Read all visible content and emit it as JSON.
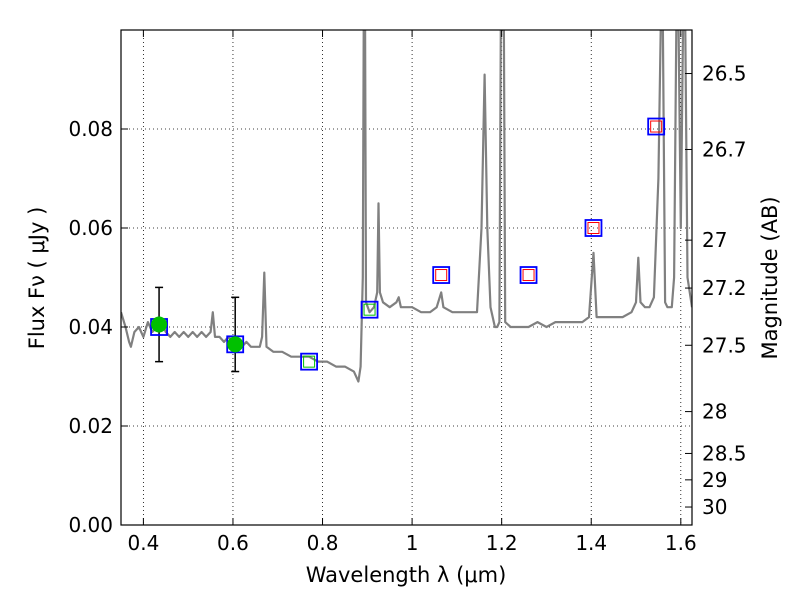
{
  "chart_data": {
    "type": "scatter",
    "title": "",
    "xlabel": "Wavelength  λ (μm)",
    "ylabel": "Flux  Fν  ( μJy )",
    "y2label": "Magnitude (AB)",
    "xlim": [
      0.35,
      1.625
    ],
    "ylim": [
      0.0,
      0.1
    ],
    "grid": true,
    "x_ticks": [
      "0.4",
      "0.6",
      "0.8",
      "1",
      "1.2",
      "1.4",
      "1.6"
    ],
    "y_ticks": [
      "0.00",
      "0.02",
      "0.04",
      "0.06",
      "0.08"
    ],
    "y2_ticks": [
      "26.5",
      "26.7",
      "27",
      "27.2",
      "27.5",
      "28",
      "28.5",
      "29",
      "30"
    ],
    "series": [
      {
        "kind": "spectrum_line",
        "color": "#808080",
        "points": [
          [
            0.35,
            0.043
          ],
          [
            0.36,
            0.04
          ],
          [
            0.368,
            0.037
          ],
          [
            0.372,
            0.036
          ],
          [
            0.38,
            0.039
          ],
          [
            0.39,
            0.04
          ],
          [
            0.4,
            0.038
          ],
          [
            0.41,
            0.041
          ],
          [
            0.42,
            0.039
          ],
          [
            0.43,
            0.04
          ],
          [
            0.44,
            0.041
          ],
          [
            0.45,
            0.039
          ],
          [
            0.46,
            0.038
          ],
          [
            0.47,
            0.039
          ],
          [
            0.48,
            0.038
          ],
          [
            0.49,
            0.039
          ],
          [
            0.5,
            0.038
          ],
          [
            0.51,
            0.039
          ],
          [
            0.52,
            0.038
          ],
          [
            0.53,
            0.039
          ],
          [
            0.54,
            0.038
          ],
          [
            0.55,
            0.039
          ],
          [
            0.555,
            0.043
          ],
          [
            0.56,
            0.038
          ],
          [
            0.57,
            0.038
          ],
          [
            0.58,
            0.037
          ],
          [
            0.59,
            0.038
          ],
          [
            0.6,
            0.037
          ],
          [
            0.61,
            0.037
          ],
          [
            0.62,
            0.036
          ],
          [
            0.63,
            0.037
          ],
          [
            0.64,
            0.036
          ],
          [
            0.65,
            0.036
          ],
          [
            0.66,
            0.036
          ],
          [
            0.665,
            0.038
          ],
          [
            0.67,
            0.051
          ],
          [
            0.675,
            0.036
          ],
          [
            0.69,
            0.035
          ],
          [
            0.71,
            0.035
          ],
          [
            0.73,
            0.034
          ],
          [
            0.75,
            0.034
          ],
          [
            0.77,
            0.034
          ],
          [
            0.79,
            0.033
          ],
          [
            0.81,
            0.033
          ],
          [
            0.83,
            0.032
          ],
          [
            0.85,
            0.032
          ],
          [
            0.87,
            0.031
          ],
          [
            0.88,
            0.029
          ],
          [
            0.885,
            0.032
          ],
          [
            0.89,
            0.05
          ],
          [
            0.892,
            0.1
          ],
          [
            0.895,
            0.1
          ],
          [
            0.897,
            0.045
          ],
          [
            0.905,
            0.043
          ],
          [
            0.915,
            0.044
          ],
          [
            0.922,
            0.047
          ],
          [
            0.925,
            0.065
          ],
          [
            0.928,
            0.047
          ],
          [
            0.935,
            0.045
          ],
          [
            0.95,
            0.044
          ],
          [
            0.965,
            0.045
          ],
          [
            0.97,
            0.046
          ],
          [
            0.975,
            0.044
          ],
          [
            1.0,
            0.044
          ],
          [
            1.02,
            0.043
          ],
          [
            1.04,
            0.043
          ],
          [
            1.055,
            0.044
          ],
          [
            1.065,
            0.047
          ],
          [
            1.07,
            0.044
          ],
          [
            1.09,
            0.043
          ],
          [
            1.11,
            0.043
          ],
          [
            1.13,
            0.043
          ],
          [
            1.145,
            0.043
          ],
          [
            1.155,
            0.06
          ],
          [
            1.162,
            0.091
          ],
          [
            1.168,
            0.06
          ],
          [
            1.175,
            0.044
          ],
          [
            1.185,
            0.04
          ],
          [
            1.19,
            0.04
          ],
          [
            1.195,
            0.041
          ],
          [
            1.198,
            0.1
          ],
          [
            1.205,
            0.1
          ],
          [
            1.208,
            0.041
          ],
          [
            1.22,
            0.04
          ],
          [
            1.24,
            0.04
          ],
          [
            1.26,
            0.04
          ],
          [
            1.28,
            0.041
          ],
          [
            1.3,
            0.04
          ],
          [
            1.32,
            0.041
          ],
          [
            1.34,
            0.041
          ],
          [
            1.36,
            0.041
          ],
          [
            1.38,
            0.041
          ],
          [
            1.395,
            0.042
          ],
          [
            1.405,
            0.055
          ],
          [
            1.412,
            0.042
          ],
          [
            1.43,
            0.042
          ],
          [
            1.45,
            0.042
          ],
          [
            1.47,
            0.042
          ],
          [
            1.49,
            0.043
          ],
          [
            1.5,
            0.045
          ],
          [
            1.505,
            0.054
          ],
          [
            1.51,
            0.045
          ],
          [
            1.52,
            0.044
          ],
          [
            1.53,
            0.044
          ],
          [
            1.54,
            0.046
          ],
          [
            1.55,
            0.07
          ],
          [
            1.555,
            0.1
          ],
          [
            1.56,
            0.1
          ],
          [
            1.565,
            0.045
          ],
          [
            1.57,
            0.044
          ],
          [
            1.58,
            0.044
          ],
          [
            1.585,
            0.05
          ],
          [
            1.59,
            0.1
          ],
          [
            1.595,
            0.1
          ],
          [
            1.6,
            0.06
          ],
          [
            1.605,
            0.1
          ],
          [
            1.61,
            0.1
          ],
          [
            1.615,
            0.05
          ],
          [
            1.625,
            0.044
          ]
        ]
      },
      {
        "kind": "green_points",
        "color": "#00c000",
        "x": [
          0.435,
          0.605
        ],
        "y": [
          0.0405,
          0.0365
        ],
        "yerr_low": [
          0.0075,
          0.0055
        ],
        "yerr_high": [
          0.0075,
          0.0095
        ]
      },
      {
        "kind": "blue_squares",
        "color": "#0000ff",
        "x": [
          0.435,
          0.605,
          0.77,
          0.905,
          1.065,
          1.26,
          1.405,
          1.545
        ],
        "y": [
          0.04,
          0.0365,
          0.033,
          0.0435,
          0.0505,
          0.0505,
          0.06,
          0.0805
        ]
      },
      {
        "kind": "green_small_squares",
        "color": "#00c000",
        "x": [
          0.77,
          0.905
        ],
        "y": [
          0.033,
          0.0435
        ]
      },
      {
        "kind": "red_small_squares",
        "color": "#ff0000",
        "x": [
          1.065,
          1.26,
          1.405,
          1.545
        ],
        "y": [
          0.0505,
          0.0505,
          0.06,
          0.0805
        ]
      }
    ]
  }
}
